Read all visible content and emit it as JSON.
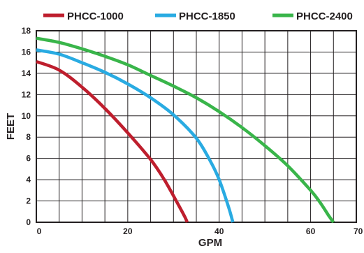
{
  "chart_data": {
    "type": "line",
    "title": "",
    "xlabel": "GPM",
    "ylabel": "FEET",
    "xlim": [
      0,
      70
    ],
    "ylim": [
      0,
      18
    ],
    "x_ticks": [
      "0",
      "20",
      "40",
      "60",
      "70"
    ],
    "y_ticks": [
      "0",
      "2",
      "4",
      "6",
      "8",
      "10",
      "12",
      "14",
      "16",
      "18"
    ],
    "grid": true,
    "legend_position": "top",
    "series": [
      {
        "name": "PHCC-1000",
        "color": "#be1e2d",
        "x": [
          0,
          5,
          10,
          15,
          20,
          25,
          28,
          31,
          32.5,
          33
        ],
        "y": [
          15.1,
          14.3,
          12.7,
          10.7,
          8.4,
          5.9,
          4.0,
          1.7,
          0.5,
          0
        ]
      },
      {
        "name": "PHCC-1850",
        "color": "#29abe2",
        "x": [
          0,
          5,
          10,
          15,
          20,
          25,
          30,
          35,
          38,
          40,
          42,
          43
        ],
        "y": [
          16.2,
          15.8,
          15.0,
          14.1,
          13.0,
          11.7,
          10.1,
          7.9,
          5.8,
          4.0,
          1.5,
          0
        ]
      },
      {
        "name": "PHCC-2400",
        "color": "#39b54a",
        "x": [
          0,
          5,
          10,
          15,
          20,
          25,
          30,
          35,
          40,
          45,
          50,
          55,
          60,
          62,
          64,
          65
        ],
        "y": [
          17.3,
          16.9,
          16.3,
          15.6,
          14.8,
          13.8,
          12.8,
          11.7,
          10.4,
          8.9,
          7.2,
          5.3,
          3.0,
          1.9,
          0.6,
          0
        ]
      }
    ]
  }
}
